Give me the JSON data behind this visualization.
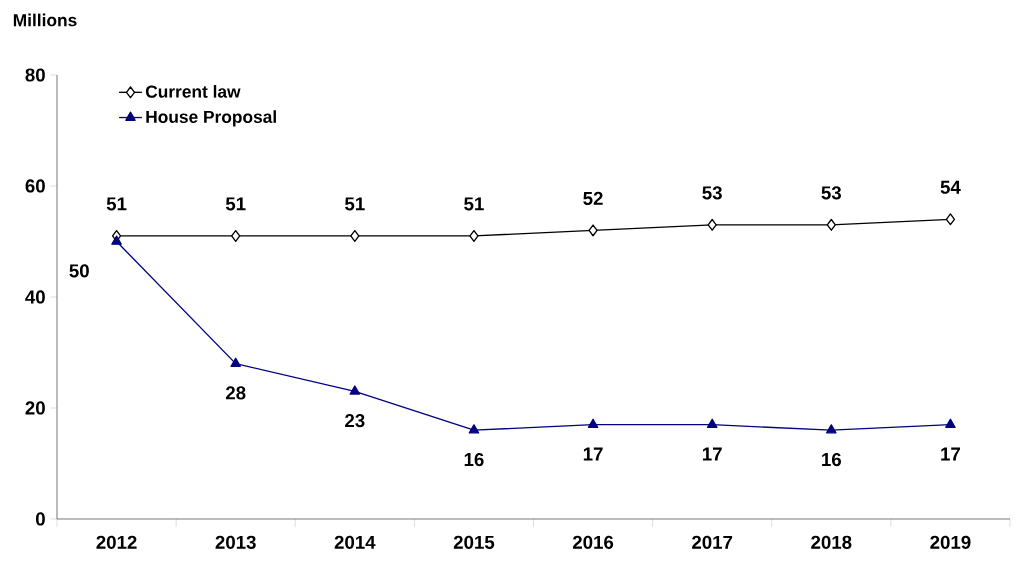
{
  "chart_data": {
    "type": "line",
    "ylabel": "Millions",
    "categories": [
      "2012",
      "2013",
      "2014",
      "2015",
      "2016",
      "2017",
      "2018",
      "2019"
    ],
    "series": [
      {
        "name": "Current law",
        "color": "#000000",
        "marker": "diamond",
        "values": [
          51,
          51,
          51,
          51,
          52,
          53,
          53,
          54
        ]
      },
      {
        "name": "House Proposal",
        "color": "#000080",
        "marker": "triangle",
        "values": [
          50,
          28,
          23,
          16,
          17,
          17,
          16,
          17
        ]
      }
    ],
    "ylim": [
      0,
      80
    ],
    "yticks": [
      0,
      20,
      40,
      60,
      80
    ],
    "data_labels": true,
    "legend": "top left",
    "line_style": "solid"
  }
}
